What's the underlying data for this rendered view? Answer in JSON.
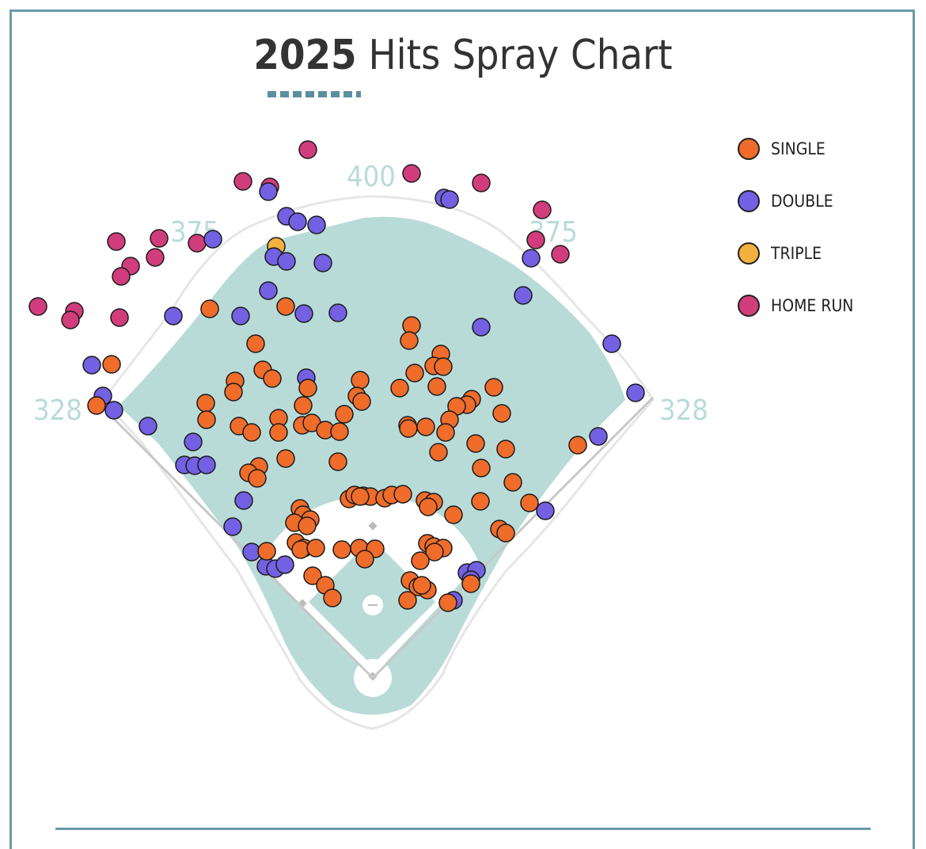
{
  "chart_data": {
    "type": "scatter",
    "title_year": "2025",
    "title_rest": "Hits Spray Chart",
    "distance_labels": {
      "left_line": "328",
      "left_center": "375",
      "center": "400",
      "right_center": "375",
      "right_line": "328"
    },
    "colors": {
      "SINGLE": "#ef6c2a",
      "DOUBLE": "#7460e3",
      "TRIPLE": "#f4b13e",
      "HOME RUN": "#d13d7c"
    },
    "legend": [
      {
        "label": "SINGLE",
        "color": "#ef6c2a"
      },
      {
        "label": "DOUBLE",
        "color": "#7460e3"
      },
      {
        "label": "TRIPLE",
        "color": "#f4b13e"
      },
      {
        "label": "HOME RUN",
        "color": "#d13d7c"
      }
    ],
    "series": [
      {
        "name": "HOME RUN",
        "points": [
          [
            389,
            189
          ],
          [
            520,
            219
          ],
          [
            608,
            231
          ],
          [
            307,
            229
          ],
          [
            341,
            236
          ],
          [
            685,
            265
          ],
          [
            677,
            303
          ],
          [
            708,
            321
          ],
          [
            147,
            305
          ],
          [
            201,
            301
          ],
          [
            249,
            307
          ],
          [
            165,
            336
          ],
          [
            153,
            349
          ],
          [
            196,
            325
          ],
          [
            48,
            387
          ],
          [
            94,
            393
          ],
          [
            89,
            404
          ],
          [
            151,
            401
          ]
        ]
      },
      {
        "name": "TRIPLE",
        "points": [
          [
            349,
            311
          ]
        ]
      },
      {
        "name": "DOUBLE",
        "points": [
          [
            339,
            242
          ],
          [
            561,
            250
          ],
          [
            568,
            252
          ],
          [
            362,
            273
          ],
          [
            376,
            280
          ],
          [
            400,
            284
          ],
          [
            269,
            302
          ],
          [
            346,
            324
          ],
          [
            362,
            330
          ],
          [
            408,
            332
          ],
          [
            671,
            326
          ],
          [
            339,
            367
          ],
          [
            661,
            373
          ],
          [
            219,
            399
          ],
          [
            304,
            399
          ],
          [
            384,
            396
          ],
          [
            427,
            395
          ],
          [
            608,
            413
          ],
          [
            773,
            434
          ],
          [
            116,
            461
          ],
          [
            130,
            500
          ],
          [
            144,
            518
          ],
          [
            187,
            538
          ],
          [
            803,
            496
          ],
          [
            244,
            558
          ],
          [
            756,
            551
          ],
          [
            233,
            587
          ],
          [
            246,
            588
          ],
          [
            261,
            587
          ],
          [
            387,
            477
          ],
          [
            308,
            632
          ],
          [
            294,
            665
          ],
          [
            689,
            645
          ],
          [
            318,
            697
          ],
          [
            336,
            715
          ],
          [
            348,
            718
          ],
          [
            360,
            713
          ],
          [
            590,
            723
          ],
          [
            602,
            720
          ],
          [
            595,
            732
          ],
          [
            573,
            758
          ]
        ]
      },
      {
        "name": "SINGLE",
        "points": [
          [
            265,
            390
          ],
          [
            361,
            387
          ],
          [
            520,
            411
          ],
          [
            517,
            430
          ],
          [
            557,
            447
          ],
          [
            548,
            462
          ],
          [
            560,
            463
          ],
          [
            524,
            471
          ],
          [
            552,
            488
          ],
          [
            505,
            490
          ],
          [
            455,
            480
          ],
          [
            451,
            500
          ],
          [
            457,
            507
          ],
          [
            624,
            489
          ],
          [
            596,
            504
          ],
          [
            590,
            511
          ],
          [
            577,
            513
          ],
          [
            568,
            530
          ],
          [
            563,
            546
          ],
          [
            515,
            537
          ],
          [
            516,
            541
          ],
          [
            538,
            539
          ],
          [
            554,
            571
          ],
          [
            601,
            560
          ],
          [
            639,
            567
          ],
          [
            634,
            522
          ],
          [
            608,
            591
          ],
          [
            648,
            609
          ],
          [
            607,
            633
          ],
          [
            669,
            635
          ],
          [
            631,
            668
          ],
          [
            639,
            673
          ],
          [
            573,
            650
          ],
          [
            730,
            562
          ],
          [
            141,
            460
          ],
          [
            122,
            512
          ],
          [
            323,
            434
          ],
          [
            332,
            467
          ],
          [
            344,
            478
          ],
          [
            297,
            481
          ],
          [
            295,
            495
          ],
          [
            260,
            509
          ],
          [
            261,
            530
          ],
          [
            302,
            538
          ],
          [
            318,
            546
          ],
          [
            352,
            528
          ],
          [
            352,
            546
          ],
          [
            389,
            490
          ],
          [
            383,
            512
          ],
          [
            382,
            537
          ],
          [
            394,
            534
          ],
          [
            411,
            543
          ],
          [
            429,
            545
          ],
          [
            435,
            523
          ],
          [
            361,
            579
          ],
          [
            327,
            589
          ],
          [
            314,
            597
          ],
          [
            325,
            604
          ],
          [
            427,
            583
          ],
          [
            441,
            630
          ],
          [
            448,
            625
          ],
          [
            459,
            626
          ],
          [
            468,
            627
          ],
          [
            486,
            629
          ],
          [
            495,
            625
          ],
          [
            509,
            624
          ],
          [
            537,
            632
          ],
          [
            548,
            634
          ],
          [
            541,
            640
          ],
          [
            455,
            627
          ],
          [
            379,
            642
          ],
          [
            383,
            650
          ],
          [
            392,
            656
          ],
          [
            372,
            660
          ],
          [
            388,
            664
          ],
          [
            374,
            685
          ],
          [
            384,
            692
          ],
          [
            380,
            694
          ],
          [
            399,
            692
          ],
          [
            432,
            694
          ],
          [
            454,
            692
          ],
          [
            474,
            693
          ],
          [
            461,
            706
          ],
          [
            337,
            696
          ],
          [
            395,
            727
          ],
          [
            411,
            739
          ],
          [
            420,
            755
          ],
          [
            518,
            733
          ],
          [
            528,
            741
          ],
          [
            540,
            745
          ],
          [
            533,
            739
          ],
          [
            515,
            758
          ],
          [
            566,
            761
          ],
          [
            540,
            686
          ],
          [
            548,
            690
          ],
          [
            560,
            692
          ],
          [
            549,
            697
          ],
          [
            531,
            708
          ],
          [
            595,
            737
          ]
        ]
      }
    ]
  }
}
